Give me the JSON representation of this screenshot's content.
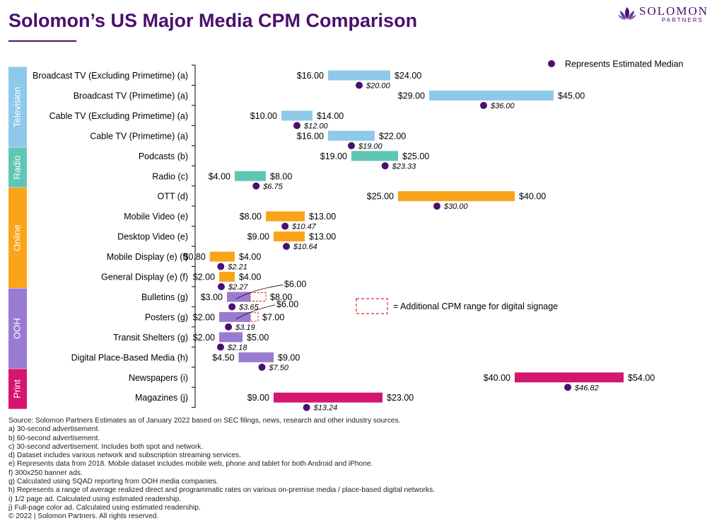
{
  "header": {
    "title": "Solomon’s US Major Media CPM Comparison",
    "logo_word": "SOLOMON",
    "logo_sub": "PARTNERS",
    "logo_icon": "lotus-mark-icon",
    "brand_color": "#4b0f6f"
  },
  "chart_data": {
    "type": "bar",
    "subtype": "floating-range-with-median",
    "legend": {
      "median_label": "Represents Estimated Median",
      "digital_label": "= Additional CPM range for digital signage"
    },
    "groups": [
      {
        "name": "Television",
        "color": "#8ec9ea",
        "rows": [
          0,
          1,
          2,
          3
        ]
      },
      {
        "name": "Radio",
        "color": "#5fc6b4",
        "rows": [
          4,
          5
        ]
      },
      {
        "name": "Online",
        "color": "#f9a51a",
        "rows": [
          6,
          7,
          8,
          9,
          10
        ]
      },
      {
        "name": "OOH",
        "color": "#9b7ad2",
        "rows": [
          11,
          12,
          13,
          14
        ]
      },
      {
        "name": "Print",
        "color": "#d5166e",
        "rows": [
          15,
          16
        ]
      }
    ],
    "categories": [
      "Broadcast TV (Excluding Primetime) (a)",
      "Broadcast TV (Primetime) (a)",
      "Cable TV (Excluding Primetime) (a)",
      "Cable TV (Primetime) (a)",
      "Podcasts (b)",
      "Radio (c)",
      "OTT (d)",
      "Mobile Video (e)",
      "Desktop Video (e)",
      "Mobile Display (e) (f)",
      "General Display (e) (f)",
      "Bulletins (g)",
      "Posters (g)",
      "Transit Shelters (g)",
      "Digital Place-Based Media (h)",
      "Newspapers (i)",
      "Magazines (j)"
    ],
    "low": [
      16.0,
      29.0,
      10.0,
      16.0,
      19.0,
      4.0,
      25.0,
      8.0,
      9.0,
      0.8,
      2.0,
      3.0,
      2.0,
      2.0,
      4.5,
      40.0,
      9.0
    ],
    "high": [
      24.0,
      45.0,
      14.0,
      22.0,
      25.0,
      8.0,
      40.0,
      13.0,
      13.0,
      4.0,
      4.0,
      6.0,
      6.0,
      5.0,
      9.0,
      54.0,
      23.0
    ],
    "median": [
      20.0,
      36.0,
      12.0,
      19.0,
      23.33,
      6.75,
      30.0,
      10.47,
      10.64,
      2.21,
      2.27,
      3.65,
      3.19,
      2.18,
      7.5,
      46.82,
      13.24
    ],
    "low_labels": [
      "$16.00",
      "$29.00",
      "$10.00",
      "$16.00",
      "$19.00",
      "$4.00",
      "$25.00",
      "$8.00",
      "$9.00",
      "$0.80",
      "$2.00",
      "$3.00",
      "$2.00",
      "$2.00",
      "$4.50",
      "$40.00",
      "$9.00"
    ],
    "high_labels": [
      "$24.00",
      "$45.00",
      "$14.00",
      "$22.00",
      "$25.00",
      "$8.00",
      "$40.00",
      "$13.00",
      "$13.00",
      "$4.00",
      "$4.00",
      "$6.00",
      "$6.00",
      "$5.00",
      "$9.00",
      "$54.00",
      "$23.00"
    ],
    "median_labels": [
      "$20.00",
      "$36.00",
      "$12.00",
      "$19.00",
      "$23.33",
      "$6.75",
      "$30.00",
      "$10.47",
      "$10.64",
      "$2.21",
      "$2.27",
      "$3.65",
      "$3.19",
      "$2.18",
      "$7.50",
      "$46.82",
      "$13.24"
    ],
    "digital_signage": [
      {
        "row": 11,
        "low": 6.0,
        "high": 8.0,
        "high_label": "$8.00"
      },
      {
        "row": 12,
        "low": 6.0,
        "high": 7.0,
        "high_label": "$7.00"
      }
    ],
    "median_color": "#4b0f6f",
    "digital_color": "#e02424"
  },
  "sources": [
    "Source: Solomon Partners Estimates as of January 2022 based on SEC filings, news, research and other industry sources.",
    "a) 30-second advertisement.",
    "b) 60-second advertisement.",
    "c) 30-second advertisement. Includes both spot and network.",
    "d) Dataset includes various network and subscription streaming services.",
    "e) Represents data from 2018. Mobile dataset includes mobile web, phone and tablet for both Android and iPhone.",
    "f) 300x250 banner ads.",
    "g) Calculated using SQAD reporting from OOH media companies.",
    "h) Represents a range of average realized direct and programmatic rates on various on-premise media / place-based digital networks.",
    "i) 1/2 page ad. Calculated using estimated readership.",
    "j) Full-page color ad. Calculated using estimated readership.",
    "© 2022 | Solomon Partners. All rights reserved."
  ]
}
